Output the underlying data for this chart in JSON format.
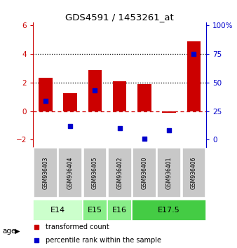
{
  "title": "GDS4591 / 1453261_at",
  "samples": [
    "GSM936403",
    "GSM936404",
    "GSM936405",
    "GSM936402",
    "GSM936400",
    "GSM936401",
    "GSM936406"
  ],
  "transformed_count": [
    2.35,
    1.25,
    2.85,
    2.1,
    1.9,
    -0.1,
    4.85
  ],
  "percentile_rank": [
    34,
    12,
    43,
    10,
    1,
    8,
    75
  ],
  "age_groups": [
    {
      "label": "E14",
      "start": 0,
      "end": 2,
      "color": "#ccffcc"
    },
    {
      "label": "E15",
      "start": 2,
      "end": 3,
      "color": "#88ee88"
    },
    {
      "label": "E16",
      "start": 3,
      "end": 4,
      "color": "#88ee88"
    },
    {
      "label": "E17.5",
      "start": 4,
      "end": 7,
      "color": "#44cc44"
    }
  ],
  "ylim": [
    -2.5,
    6.2
  ],
  "yticks_left": [
    -2,
    0,
    2,
    4,
    6
  ],
  "yticks_right": [
    0,
    25,
    50,
    75,
    100
  ],
  "bar_color": "#cc0000",
  "dot_color": "#0000cc",
  "dotted_lines": [
    2.0,
    4.0
  ],
  "background_color": "#ffffff",
  "sample_bg_color": "#c8c8c8",
  "left_axis_color": "#cc0000",
  "right_axis_color": "#0000cc"
}
